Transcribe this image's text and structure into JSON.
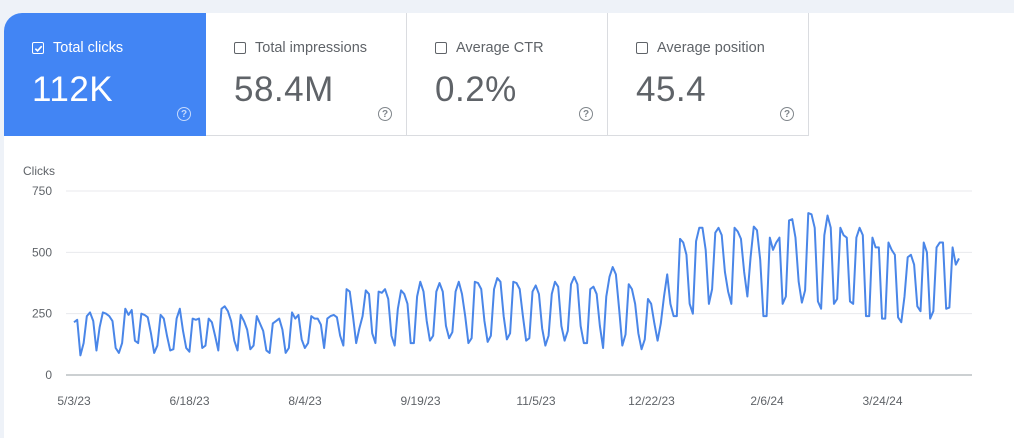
{
  "metrics": [
    {
      "label": "Total clicks",
      "value": "112K",
      "checked": true,
      "help_icon": "help-circle-icon"
    },
    {
      "label": "Total impressions",
      "value": "58.4M",
      "checked": false,
      "help_icon": "help-circle-icon"
    },
    {
      "label": "Average CTR",
      "value": "0.2%",
      "checked": false,
      "help_icon": "help-circle-icon"
    },
    {
      "label": "Average position",
      "value": "45.4",
      "checked": false,
      "help_icon": "help-circle-icon"
    }
  ],
  "colors": {
    "accent": "#4285f4",
    "line": "#4a86e8",
    "grid": "#e8eaed"
  },
  "chart_data": {
    "type": "line",
    "ylabel": "Clicks",
    "ylim": [
      0,
      750
    ],
    "yticks": [
      0,
      250,
      500,
      750
    ],
    "xticks": [
      "5/3/23",
      "6/18/23",
      "8/4/23",
      "9/19/23",
      "11/5/23",
      "12/22/23",
      "2/6/24",
      "3/24/24"
    ],
    "series": [
      {
        "values": [
          215,
          225,
          80,
          130,
          240,
          255,
          220,
          100,
          195,
          255,
          250,
          240,
          220,
          110,
          90,
          130,
          270,
          245,
          265,
          140,
          130,
          250,
          245,
          235,
          170,
          90,
          120,
          245,
          230,
          160,
          100,
          105,
          230,
          270,
          180,
          110,
          95,
          230,
          225,
          230,
          110,
          120,
          230,
          215,
          160,
          100,
          270,
          280,
          260,
          220,
          140,
          100,
          245,
          220,
          185,
          105,
          120,
          240,
          210,
          180,
          100,
          90,
          210,
          220,
          230,
          185,
          90,
          110,
          255,
          230,
          245,
          145,
          110,
          130,
          240,
          230,
          230,
          205,
          110,
          230,
          240,
          245,
          235,
          160,
          120,
          350,
          340,
          240,
          130,
          190,
          240,
          345,
          330,
          170,
          130,
          340,
          335,
          350,
          310,
          160,
          120,
          270,
          345,
          330,
          290,
          130,
          130,
          320,
          380,
          340,
          220,
          140,
          160,
          340,
          375,
          340,
          200,
          150,
          175,
          340,
          380,
          330,
          240,
          130,
          150,
          380,
          375,
          350,
          220,
          135,
          160,
          350,
          395,
          380,
          240,
          145,
          170,
          380,
          375,
          350,
          240,
          140,
          150,
          340,
          365,
          330,
          190,
          120,
          160,
          330,
          380,
          360,
          200,
          140,
          180,
          370,
          400,
          370,
          200,
          130,
          130,
          350,
          360,
          330,
          200,
          110,
          320,
          400,
          440,
          410,
          270,
          120,
          165,
          370,
          350,
          290,
          170,
          105,
          145,
          310,
          290,
          210,
          140,
          210,
          320,
          410,
          290,
          240,
          240,
          555,
          540,
          490,
          290,
          250,
          545,
          600,
          600,
          510,
          290,
          350,
          580,
          600,
          570,
          420,
          340,
          290,
          600,
          585,
          555,
          420,
          320,
          480,
          605,
          590,
          470,
          240,
          240,
          560,
          510,
          540,
          560,
          290,
          320,
          630,
          635,
          560,
          380,
          295,
          345,
          660,
          655,
          600,
          300,
          270,
          570,
          650,
          600,
          290,
          310,
          600,
          570,
          560,
          300,
          290,
          560,
          600,
          570,
          240,
          240,
          560,
          520,
          520,
          230,
          230,
          540,
          510,
          490,
          235,
          215,
          320,
          480,
          490,
          450,
          280,
          260,
          540,
          500,
          230,
          260,
          520,
          540,
          540,
          270,
          275,
          520,
          450,
          475
        ]
      }
    ]
  }
}
